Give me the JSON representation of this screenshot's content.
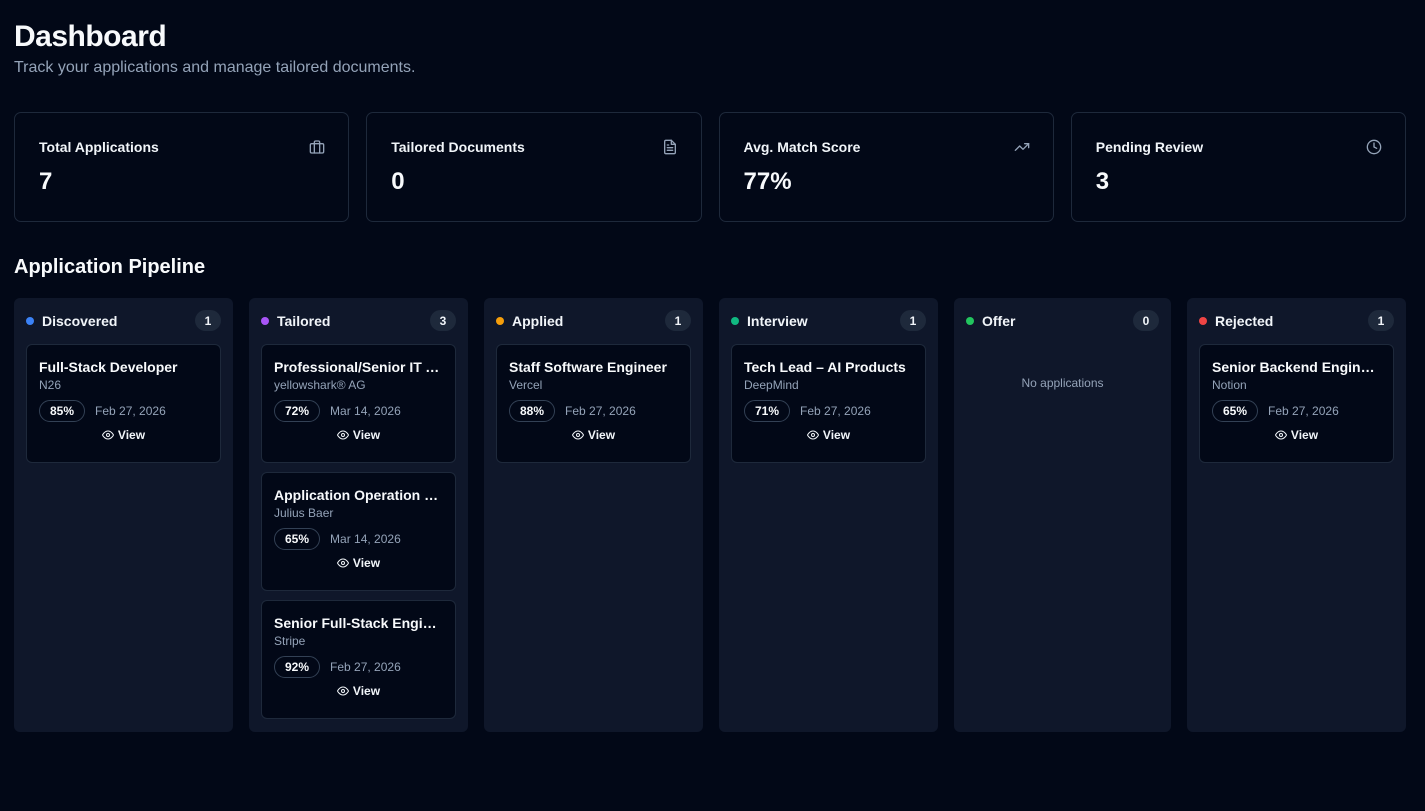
{
  "header": {
    "title": "Dashboard",
    "subtitle": "Track your applications and manage tailored documents."
  },
  "stats": [
    {
      "label": "Total Applications",
      "value": "7",
      "icon": "briefcase-icon"
    },
    {
      "label": "Tailored Documents",
      "value": "0",
      "icon": "document-icon"
    },
    {
      "label": "Avg. Match Score",
      "value": "77%",
      "icon": "trending-up-icon"
    },
    {
      "label": "Pending Review",
      "value": "3",
      "icon": "clock-icon"
    }
  ],
  "pipeline": {
    "title": "Application Pipeline",
    "view_label": "View",
    "empty_label": "No applications",
    "columns": [
      {
        "name": "Discovered",
        "count": "1",
        "color": "#3b82f6",
        "cards": [
          {
            "title": "Full-Stack Developer",
            "company": "N26",
            "score": "85%",
            "date": "Feb 27, 2026"
          }
        ]
      },
      {
        "name": "Tailored",
        "count": "3",
        "color": "#a855f7",
        "cards": [
          {
            "title": "Professional/Senior IT Application Engineer",
            "company": "yellowshark® AG",
            "score": "72%",
            "date": "Mar 14, 2026"
          },
          {
            "title": "Application Operation Engineer",
            "company": "Julius Baer",
            "score": "65%",
            "date": "Mar 14, 2026"
          },
          {
            "title": "Senior Full-Stack Engineer",
            "company": "Stripe",
            "score": "92%",
            "date": "Feb 27, 2026"
          }
        ]
      },
      {
        "name": "Applied",
        "count": "1",
        "color": "#f59e0b",
        "cards": [
          {
            "title": "Staff Software Engineer",
            "company": "Vercel",
            "score": "88%",
            "date": "Feb 27, 2026"
          }
        ]
      },
      {
        "name": "Interview",
        "count": "1",
        "color": "#10b981",
        "cards": [
          {
            "title": "Tech Lead – AI Products",
            "company": "DeepMind",
            "score": "71%",
            "date": "Feb 27, 2026"
          }
        ]
      },
      {
        "name": "Offer",
        "count": "0",
        "color": "#22c55e",
        "cards": []
      },
      {
        "name": "Rejected",
        "count": "1",
        "color": "#ef4444",
        "cards": [
          {
            "title": "Senior Backend Engineer",
            "company": "Notion",
            "score": "65%",
            "date": "Feb 27, 2026"
          }
        ]
      }
    ]
  }
}
